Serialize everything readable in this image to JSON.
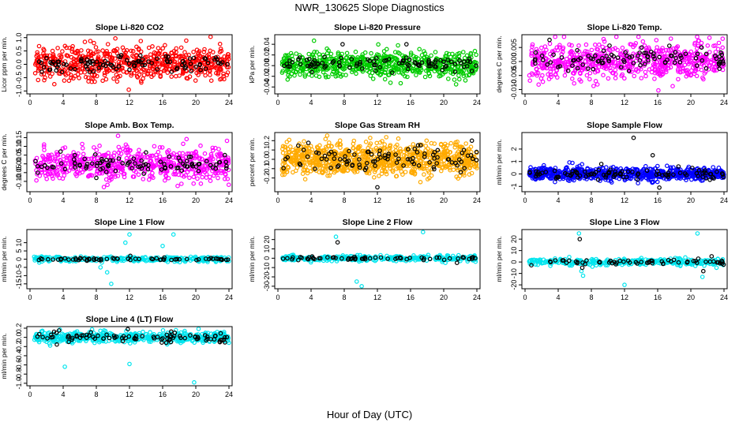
{
  "figure": {
    "title": "NWR_130625  Slope Diagnostics",
    "xlabel": "Hour of Day (UTC)"
  },
  "chart_data": [
    {
      "type": "scatter",
      "title": "Slope Li-820 CO2",
      "ylabel": "Licor ppm per min.",
      "xlim": [
        0,
        24
      ],
      "xticks": [
        0,
        4,
        8,
        12,
        16,
        20,
        24
      ],
      "ylim": [
        -1.05,
        1.05
      ],
      "yticks": [
        -1.0,
        -0.5,
        0.0,
        0.5,
        1.0
      ],
      "grid": false,
      "series": [
        {
          "color": "#ff0000",
          "count": 650,
          "x": [
            0.5,
            24
          ],
          "center": 0.05,
          "spread": 0.32
        },
        {
          "color": "#000000",
          "count": 90,
          "x": [
            0.5,
            24
          ],
          "center": 0.02,
          "spread": 0.14,
          "samples": [
            [
              1.1,
              0.1
            ],
            [
              3.3,
              -0.1
            ],
            [
              6.2,
              0.2
            ],
            [
              8.5,
              0.0
            ],
            [
              10.7,
              0.3
            ],
            [
              12.0,
              -0.2
            ],
            [
              14.3,
              0.1
            ],
            [
              16.4,
              0.3
            ],
            [
              18.8,
              -0.1
            ],
            [
              21.2,
              0.2
            ],
            [
              23.8,
              0.0
            ]
          ]
        }
      ]
    },
    {
      "type": "scatter",
      "title": "Slope Li-820 Pressure",
      "ylabel": "kPa per min.",
      "xlim": [
        0,
        24
      ],
      "xticks": [
        0,
        4,
        8,
        12,
        16,
        20,
        24
      ],
      "ylim": [
        -0.05,
        0.055
      ],
      "yticks": [
        -0.04,
        -0.02,
        0.0,
        0.02,
        0.04
      ],
      "grid": false,
      "series": [
        {
          "color": "#00cc00",
          "count": 650,
          "x": [
            0.5,
            24
          ],
          "center": 0.002,
          "spread": 0.012
        },
        {
          "color": "#000000",
          "count": 90,
          "x": [
            0.5,
            24
          ],
          "center": 0.002,
          "spread": 0.006,
          "samples": [
            [
              7.8,
              0.04
            ],
            [
              9.5,
              0.0
            ],
            [
              12.3,
              -0.003
            ],
            [
              15.5,
              0.04
            ],
            [
              18.2,
              0.01
            ],
            [
              22.1,
              0.005
            ],
            [
              23.9,
              0.0
            ]
          ]
        }
      ]
    },
    {
      "type": "scatter",
      "title": "Slope Li-820 Temp.",
      "ylabel": "degrees C per min.",
      "xlim": [
        0,
        24
      ],
      "xticks": [
        0,
        4,
        8,
        12,
        16,
        20,
        24
      ],
      "ylim": [
        -0.011,
        0.009
      ],
      "yticks": [
        -0.01,
        -0.005,
        0.0,
        0.005
      ],
      "grid": false,
      "series": [
        {
          "color": "#ff00ff",
          "count": 650,
          "x": [
            0.5,
            24
          ],
          "center": 0.0,
          "spread": 0.0032
        },
        {
          "color": "#000000",
          "count": 90,
          "x": [
            0.5,
            24
          ],
          "center": 0.0008,
          "spread": 0.0018,
          "samples": [
            [
              4.0,
              -0.002
            ],
            [
              6.3,
              0.004
            ],
            [
              8.8,
              0.0
            ],
            [
              11.6,
              -0.002
            ],
            [
              14.4,
              0.003
            ],
            [
              17.7,
              0.002
            ],
            [
              21.3,
              0.005
            ],
            [
              23.1,
              0.001
            ]
          ]
        }
      ]
    },
    {
      "type": "scatter",
      "title": "Slope Amb. Box Temp.",
      "ylabel": "degrees C per min.",
      "xlim": [
        0,
        24
      ],
      "xticks": [
        0,
        4,
        8,
        12,
        16,
        20,
        24
      ],
      "ylim": [
        -0.15,
        0.17
      ],
      "yticks": [
        -0.1,
        -0.05,
        0.0,
        0.05,
        0.1,
        0.15
      ],
      "grid": false,
      "series": [
        {
          "color": "#ff00ff",
          "count": 600,
          "x": [
            0.5,
            24
          ],
          "center": 0.0,
          "spread": 0.045
        },
        {
          "color": "#000000",
          "count": 90,
          "x": [
            0.5,
            24
          ],
          "center": 0.0,
          "spread": 0.025,
          "samples": [
            [
              5.4,
              0.05
            ],
            [
              8.0,
              -0.08
            ],
            [
              9.7,
              0.02
            ],
            [
              12.5,
              0.03
            ],
            [
              16.3,
              -0.02
            ],
            [
              19.4,
              0.04
            ],
            [
              23.5,
              0.05
            ]
          ]
        }
      ]
    },
    {
      "type": "scatter",
      "title": "Slope Gas Stream RH",
      "ylabel": "percent per min.",
      "xlim": [
        0,
        24
      ],
      "xticks": [
        0,
        4,
        8,
        12,
        16,
        20,
        24
      ],
      "ylim": [
        -0.33,
        0.27
      ],
      "yticks": [
        -0.2,
        -0.1,
        0.0,
        0.1,
        0.2
      ],
      "grid": false,
      "series": [
        {
          "color": "#ffaa00",
          "count": 900,
          "x": [
            0.5,
            24
          ],
          "center": 0.0,
          "spread": 0.085
        },
        {
          "color": "#000000",
          "count": 90,
          "x": [
            0.5,
            24
          ],
          "center": 0.0,
          "spread": 0.06,
          "samples": [
            [
              3.1,
              0.1
            ],
            [
              7.5,
              0.0
            ],
            [
              12.0,
              -0.3
            ],
            [
              14.2,
              0.05
            ],
            [
              16.9,
              0.15
            ],
            [
              20.6,
              0.0
            ],
            [
              23.4,
              0.2
            ]
          ]
        }
      ]
    },
    {
      "type": "scatter",
      "title": "Slope Sample Flow",
      "ylabel": "ml/min per min.",
      "xlim": [
        0,
        24
      ],
      "xticks": [
        0,
        4,
        8,
        12,
        16,
        20,
        24
      ],
      "ylim": [
        -1.3,
        3.2
      ],
      "yticks": [
        -1,
        0,
        1,
        2
      ],
      "grid": false,
      "series": [
        {
          "color": "#0000ff",
          "count": 700,
          "x": [
            0.5,
            24
          ],
          "center": 0.0,
          "spread": 0.25
        },
        {
          "color": "#000000",
          "count": 90,
          "x": [
            0.5,
            24
          ],
          "center": 0.0,
          "spread": 0.2,
          "samples": [
            [
              9.2,
              0.8
            ],
            [
              13.1,
              2.9
            ],
            [
              15.4,
              1.5
            ],
            [
              16.2,
              -1.1
            ],
            [
              18.5,
              0.6
            ],
            [
              21.0,
              0.3
            ]
          ]
        }
      ]
    },
    {
      "type": "scatter",
      "title": "Slope Line 1 Flow",
      "ylabel": "ml/min per min.",
      "xlim": [
        0,
        24
      ],
      "xticks": [
        0,
        4,
        8,
        12,
        16,
        20,
        24
      ],
      "ylim": [
        -17,
        17
      ],
      "yticks": [
        -15,
        -10,
        -5,
        0,
        5,
        10
      ],
      "grid": false,
      "series": [
        {
          "color": "#00e5ee",
          "count": 300,
          "x": [
            0.5,
            24
          ],
          "center": 0.0,
          "spread": 0.8,
          "samples": [
            [
              8.5,
              -5
            ],
            [
              9.3,
              -8
            ],
            [
              9.8,
              -15
            ],
            [
              11.5,
              10
            ],
            [
              12.0,
              15
            ],
            [
              16.0,
              8
            ],
            [
              17.3,
              15
            ]
          ]
        },
        {
          "color": "#000000",
          "count": 60,
          "x": [
            0.5,
            24
          ],
          "center": 0.0,
          "spread": 0.4,
          "samples": [
            [
              12.1,
              2
            ],
            [
              14.8,
              0
            ],
            [
              16.2,
              1
            ]
          ]
        }
      ]
    },
    {
      "type": "scatter",
      "title": "Slope Line 2 Flow",
      "ylabel": "ml/min per min.",
      "xlim": [
        0,
        24
      ],
      "xticks": [
        0,
        4,
        8,
        12,
        16,
        20,
        24
      ],
      "ylim": [
        -31,
        29
      ],
      "yticks": [
        -30,
        -20,
        -10,
        0,
        10,
        20
      ],
      "grid": false,
      "series": [
        {
          "color": "#00e5ee",
          "count": 320,
          "x": [
            0.5,
            24
          ],
          "center": 0.0,
          "spread": 1.5,
          "samples": [
            [
              7.0,
              23
            ],
            [
              9.5,
              -25
            ],
            [
              10.1,
              -30
            ],
            [
              17.5,
              28
            ],
            [
              20.2,
              -5
            ]
          ]
        },
        {
          "color": "#000000",
          "count": 60,
          "x": [
            0.5,
            24
          ],
          "center": 0.0,
          "spread": 1.0,
          "samples": [
            [
              7.2,
              17
            ],
            [
              21.6,
              -5
            ],
            [
              23.8,
              0
            ]
          ]
        }
      ]
    },
    {
      "type": "scatter",
      "title": "Slope Line 3 Flow",
      "ylabel": "ml/min per min.",
      "xlim": [
        0,
        24
      ],
      "xticks": [
        0,
        4,
        8,
        12,
        16,
        20,
        24
      ],
      "ylim": [
        -22,
        27
      ],
      "yticks": [
        -20,
        -10,
        0,
        10,
        20
      ],
      "grid": false,
      "series": [
        {
          "color": "#00e5ee",
          "count": 320,
          "x": [
            0.5,
            24
          ],
          "center": 0.0,
          "spread": 1.5,
          "samples": [
            [
              6.5,
              25
            ],
            [
              6.8,
              -8
            ],
            [
              7.0,
              -12
            ],
            [
              12.0,
              -20
            ],
            [
              20.8,
              25
            ],
            [
              21.4,
              -13
            ]
          ]
        },
        {
          "color": "#000000",
          "count": 60,
          "x": [
            0.5,
            24
          ],
          "center": 0.0,
          "spread": 1.0,
          "samples": [
            [
              6.6,
              20
            ],
            [
              6.9,
              -5
            ],
            [
              21.5,
              -8
            ],
            [
              22.5,
              5
            ],
            [
              23.8,
              0
            ]
          ]
        }
      ]
    },
    {
      "type": "scatter",
      "title": "Slope Line 4 (LT) Flow",
      "ylabel": "ml/min per min.",
      "xlim": [
        0,
        24
      ],
      "xticks": [
        0,
        4,
        8,
        12,
        16,
        20,
        24
      ],
      "ylim": [
        -1.02,
        0.2
      ],
      "yticks": [
        -1.0,
        -0.8,
        -0.6,
        -0.4,
        -0.2,
        0.0,
        0.2
      ],
      "grid": false,
      "series": [
        {
          "color": "#00e5ee",
          "count": 500,
          "x": [
            0.5,
            24
          ],
          "center": 0.0,
          "spread": 0.06,
          "samples": [
            [
              4.2,
              -0.64
            ],
            [
              12.0,
              -0.58
            ],
            [
              19.8,
              -0.98
            ]
          ]
        },
        {
          "color": "#000000",
          "count": 90,
          "x": [
            0.5,
            24
          ],
          "center": 0.0,
          "spread": 0.05,
          "samples": [
            [
              3.5,
              0.15
            ],
            [
              11.8,
              0.18
            ],
            [
              17.0,
              -0.1
            ]
          ]
        }
      ]
    }
  ]
}
